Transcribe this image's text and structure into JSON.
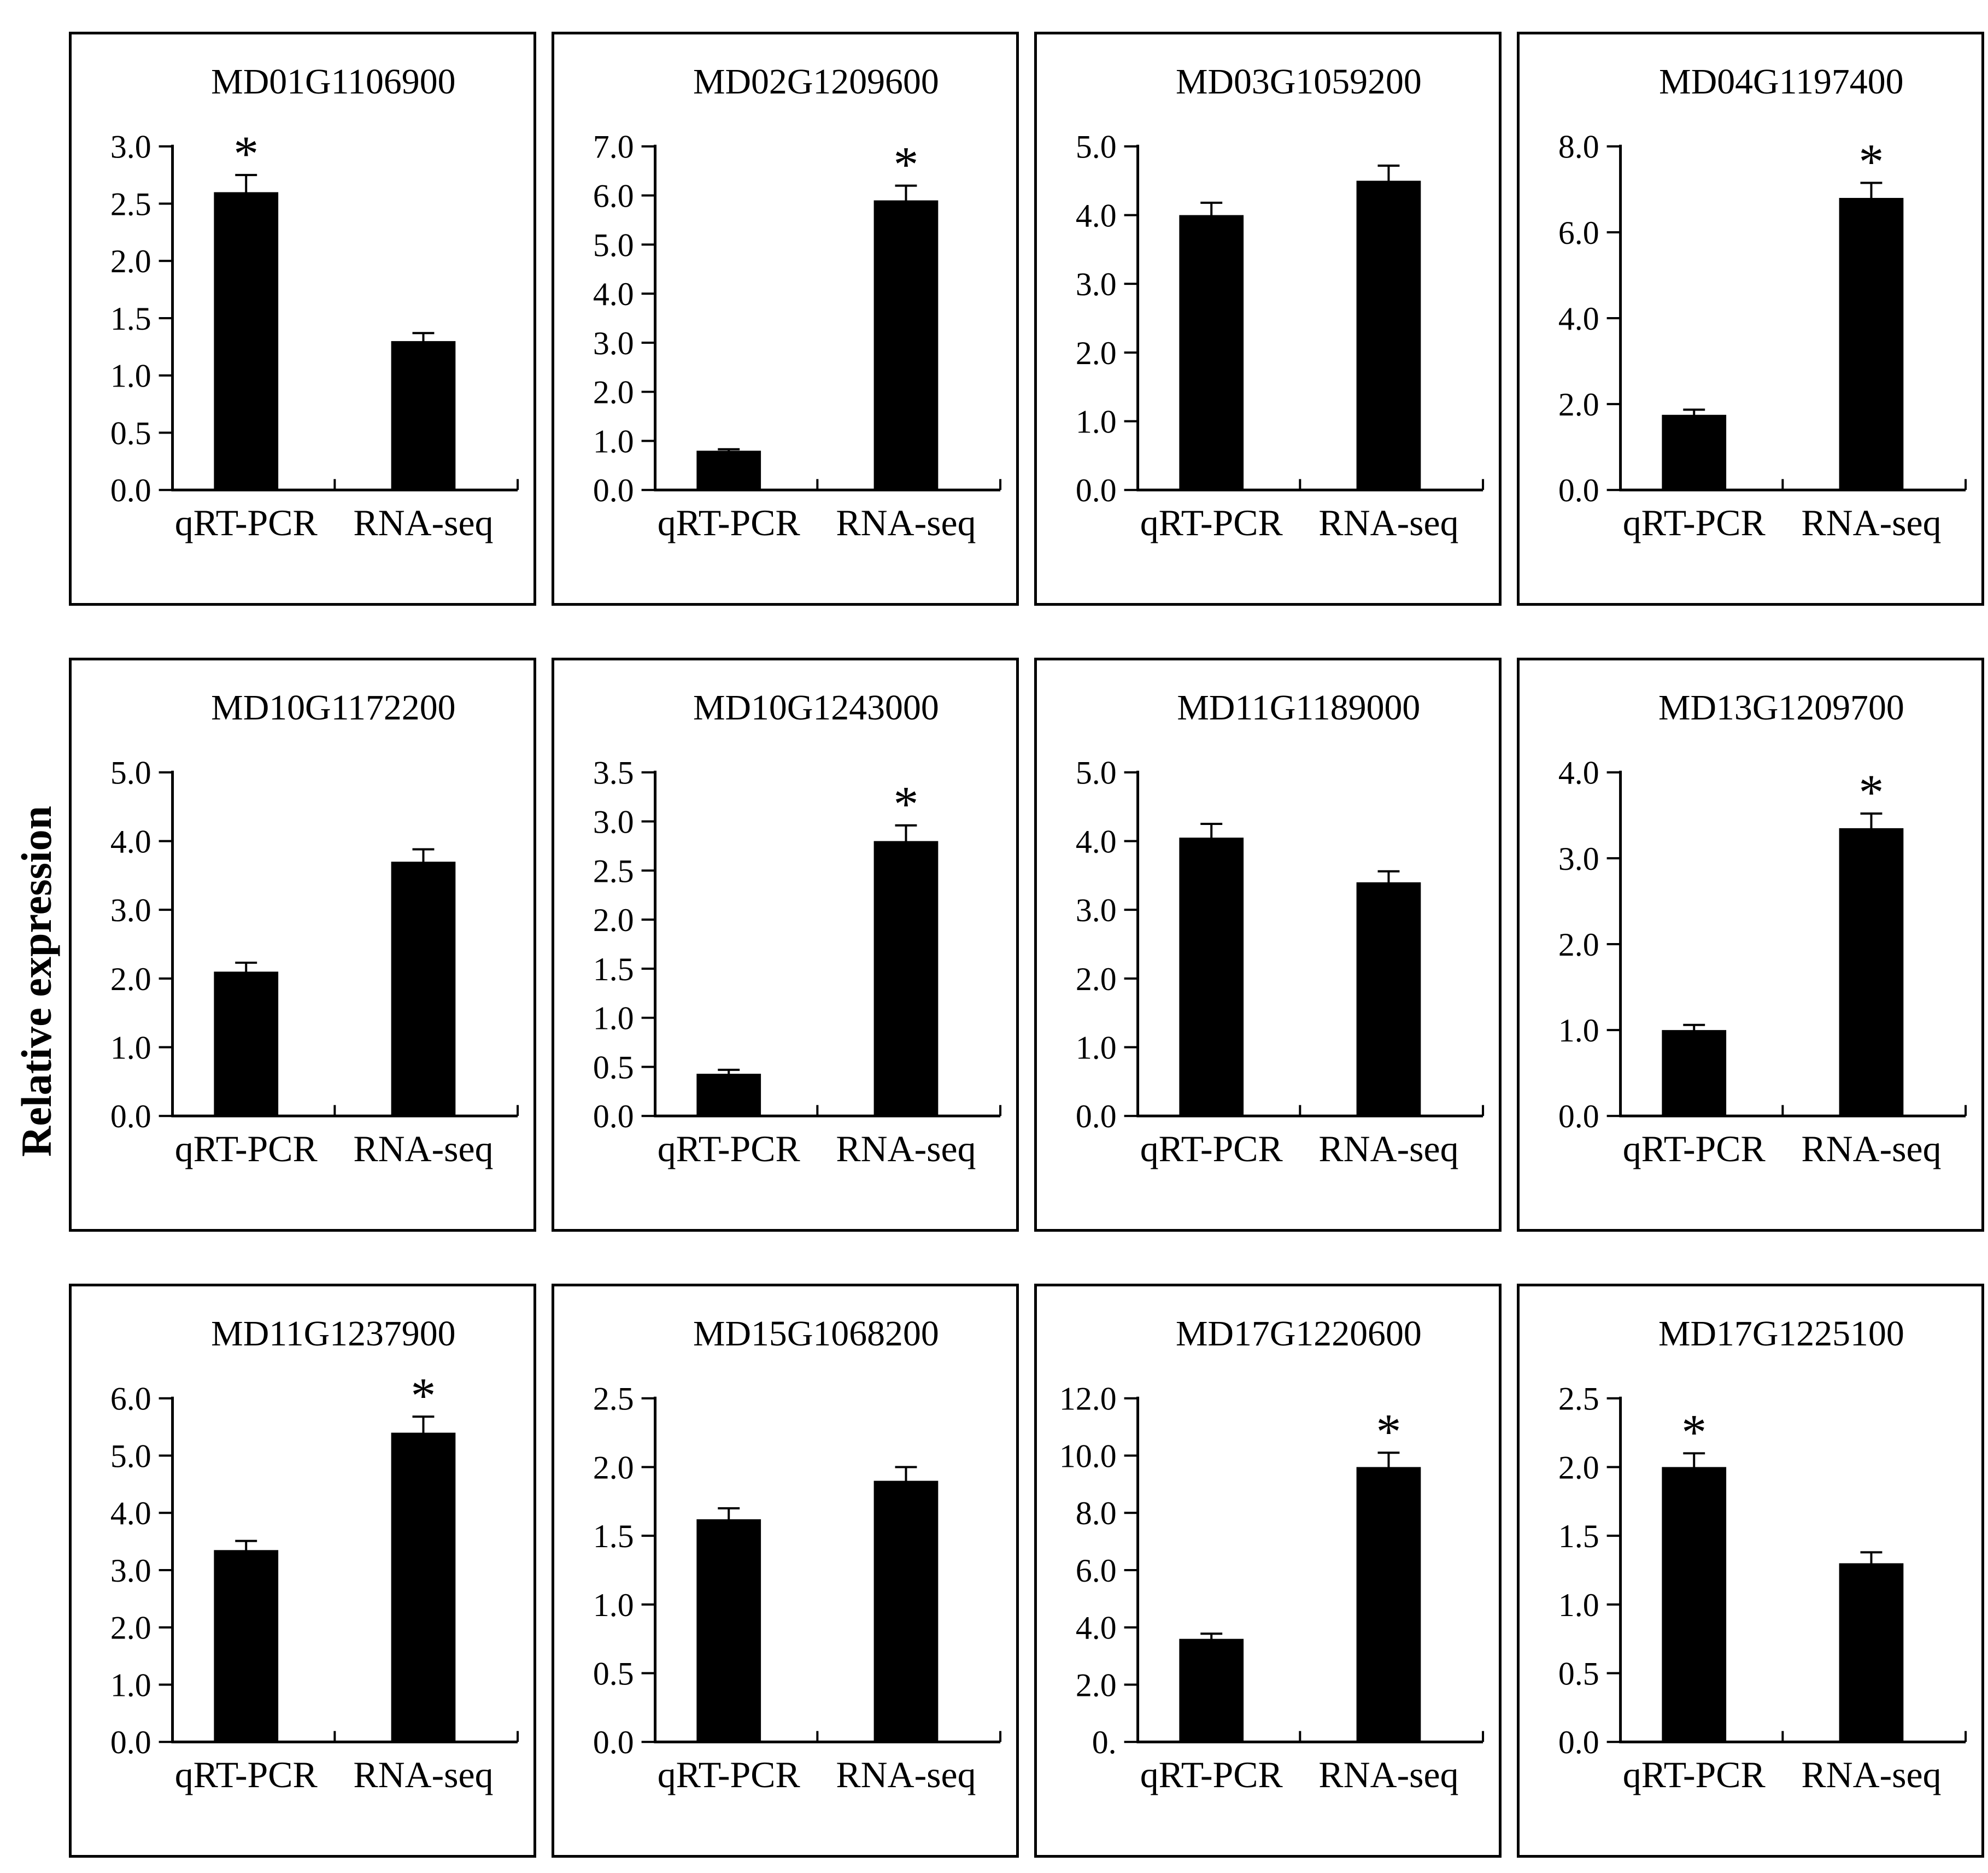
{
  "figure": {
    "y_axis_label": "Relative expression",
    "sig_marker": "*",
    "categories": [
      "qRT-PCR",
      "RNA-seq"
    ],
    "bar_color": "#000000",
    "background_color": "#ffffff",
    "layout": "3 rows x 4 columns of boxed bar charts, shared vertical axis label at left"
  },
  "chart_data": [
    {
      "type": "bar",
      "title": "MD01G1106900",
      "categories": [
        "qRT-PCR",
        "RNA-seq"
      ],
      "values": [
        2.6,
        1.3
      ],
      "errors": [
        0.15,
        0.07
      ],
      "significant": [
        true,
        false
      ],
      "ylim": [
        0,
        3.0
      ],
      "ytick_step": 0.5,
      "ytick_labels": [
        "0.0",
        "0.5",
        "1.0",
        "1.5",
        "2.0",
        "2.5",
        "3.0"
      ]
    },
    {
      "type": "bar",
      "title": "MD02G1209600",
      "categories": [
        "qRT-PCR",
        "RNA-seq"
      ],
      "values": [
        0.8,
        5.9
      ],
      "errors": [
        0.03,
        0.3
      ],
      "significant": [
        false,
        true
      ],
      "ylim": [
        0,
        7.0
      ],
      "ytick_step": 1.0,
      "ytick_labels": [
        "0.0",
        "1.0",
        "2.0",
        "3.0",
        "4.0",
        "5.0",
        "6.0",
        "7.0"
      ]
    },
    {
      "type": "bar",
      "title": "MD03G1059200",
      "categories": [
        "qRT-PCR",
        "RNA-seq"
      ],
      "values": [
        4.0,
        4.5
      ],
      "errors": [
        0.18,
        0.22
      ],
      "significant": [
        false,
        false
      ],
      "ylim": [
        0,
        5.0
      ],
      "ytick_step": 1.0,
      "ytick_labels": [
        "0.0",
        "1.0",
        "2.0",
        "3.0",
        "4.0",
        "5.0"
      ]
    },
    {
      "type": "bar",
      "title": "MD04G1197400",
      "categories": [
        "qRT-PCR",
        "RNA-seq"
      ],
      "values": [
        1.75,
        6.8
      ],
      "errors": [
        0.12,
        0.35
      ],
      "significant": [
        false,
        true
      ],
      "ylim": [
        0,
        8.0
      ],
      "ytick_step": 2.0,
      "ytick_labels": [
        "0.0",
        "2.0",
        "4.0",
        "6.0",
        "8.0"
      ]
    },
    {
      "type": "bar",
      "title": "MD10G1172200",
      "categories": [
        "qRT-PCR",
        "RNA-seq"
      ],
      "values": [
        2.1,
        3.7
      ],
      "errors": [
        0.13,
        0.18
      ],
      "significant": [
        false,
        false
      ],
      "ylim": [
        0,
        5.0
      ],
      "ytick_step": 1.0,
      "ytick_labels": [
        "0.0",
        "1.0",
        "2.0",
        "3.0",
        "4.0",
        "5.0"
      ]
    },
    {
      "type": "bar",
      "title": "MD10G1243000",
      "categories": [
        "qRT-PCR",
        "RNA-seq"
      ],
      "values": [
        0.43,
        2.8
      ],
      "errors": [
        0.04,
        0.16
      ],
      "significant": [
        false,
        true
      ],
      "ylim": [
        0,
        3.5
      ],
      "ytick_step": 0.5,
      "ytick_labels": [
        "0.0",
        "0.5",
        "1.0",
        "1.5",
        "2.0",
        "2.5",
        "3.0",
        "3.5"
      ]
    },
    {
      "type": "bar",
      "title": "MD11G1189000",
      "categories": [
        "qRT-PCR",
        "RNA-seq"
      ],
      "values": [
        4.05,
        3.4
      ],
      "errors": [
        0.2,
        0.16
      ],
      "significant": [
        false,
        false
      ],
      "ylim": [
        0,
        5.0
      ],
      "ytick_step": 1.0,
      "ytick_labels": [
        "0.0",
        "1.0",
        "2.0",
        "3.0",
        "4.0",
        "5.0"
      ]
    },
    {
      "type": "bar",
      "title": "MD13G1209700",
      "categories": [
        "qRT-PCR",
        "RNA-seq"
      ],
      "values": [
        1.0,
        3.35
      ],
      "errors": [
        0.06,
        0.17
      ],
      "significant": [
        false,
        true
      ],
      "ylim": [
        0,
        4.0
      ],
      "ytick_step": 1.0,
      "ytick_labels": [
        "0.0",
        "1.0",
        "2.0",
        "3.0",
        "4.0"
      ]
    },
    {
      "type": "bar",
      "title": "MD11G1237900",
      "categories": [
        "qRT-PCR",
        "RNA-seq"
      ],
      "values": [
        3.35,
        5.4
      ],
      "errors": [
        0.16,
        0.28
      ],
      "significant": [
        false,
        true
      ],
      "ylim": [
        0,
        6.0
      ],
      "ytick_step": 1.0,
      "ytick_labels": [
        "0.0",
        "1.0",
        "2.0",
        "3.0",
        "4.0",
        "5.0",
        "6.0"
      ]
    },
    {
      "type": "bar",
      "title": "MD15G1068200",
      "categories": [
        "qRT-PCR",
        "RNA-seq"
      ],
      "values": [
        1.62,
        1.9
      ],
      "errors": [
        0.08,
        0.1
      ],
      "significant": [
        false,
        false
      ],
      "ylim": [
        0,
        2.5
      ],
      "ytick_step": 0.5,
      "ytick_labels": [
        "0.0",
        "0.5",
        "1.0",
        "1.5",
        "2.0",
        "2.5"
      ]
    },
    {
      "type": "bar",
      "title": "MD17G1220600",
      "categories": [
        "qRT-PCR",
        "RNA-seq"
      ],
      "values": [
        3.6,
        9.6
      ],
      "errors": [
        0.18,
        0.5
      ],
      "significant": [
        false,
        true
      ],
      "ylim": [
        0,
        12.0
      ],
      "ytick_step": 2.0,
      "ytick_labels": [
        "0.",
        "2.0",
        "4.0",
        "6.0",
        "8.0",
        "10.0",
        "12.0"
      ]
    },
    {
      "type": "bar",
      "title": "MD17G1225100",
      "categories": [
        "qRT-PCR",
        "RNA-seq"
      ],
      "values": [
        2.0,
        1.3
      ],
      "errors": [
        0.1,
        0.08
      ],
      "significant": [
        true,
        false
      ],
      "ylim": [
        0,
        2.5
      ],
      "ytick_step": 0.5,
      "ytick_labels": [
        "0.0",
        "0.5",
        "1.0",
        "1.5",
        "2.0",
        "2.5"
      ]
    }
  ]
}
